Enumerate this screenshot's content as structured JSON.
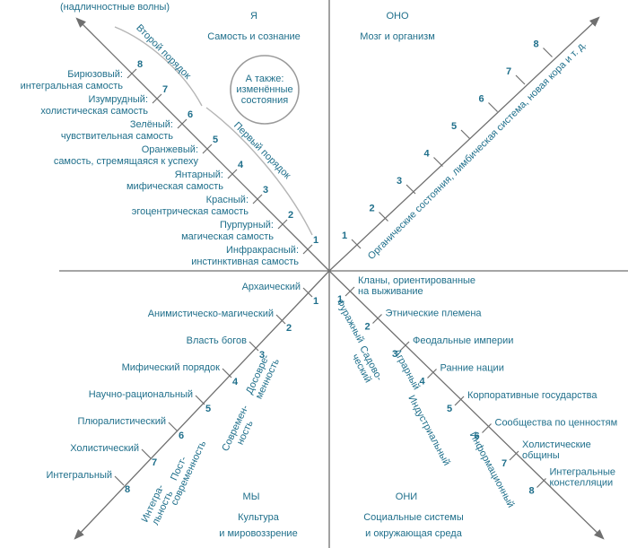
{
  "quadrants": {
    "upper_left": {
      "title": "Я",
      "subtitle": [
        "Самость и сознание"
      ],
      "note": "(надличностные волны)",
      "brackets": [
        "Второй порядок",
        "Первый порядок"
      ],
      "also": [
        "А также:",
        "изменённые",
        "состояния"
      ],
      "levels": [
        {
          "number": "1",
          "label": [
            "Инфракрасный:",
            "инстинктивная самость"
          ]
        },
        {
          "number": "2",
          "label": [
            "Пурпурный:",
            "магическая самость"
          ]
        },
        {
          "number": "3",
          "label": [
            "Красный:",
            "эгоцентрическая самость"
          ]
        },
        {
          "number": "4",
          "label": [
            "Янтарный:",
            "мифическая самость"
          ]
        },
        {
          "number": "5",
          "label": [
            "Оранжевый:",
            "самость, стремящаяся к успеху"
          ]
        },
        {
          "number": "6",
          "label": [
            "Зелёный:",
            "чувствительная самость"
          ]
        },
        {
          "number": "7",
          "label": [
            "Изумрудный:",
            "холистическая самость"
          ]
        },
        {
          "number": "8",
          "label": [
            "Бирюзовый:",
            "интегральная самость"
          ]
        }
      ]
    },
    "upper_right": {
      "title": "ОНО",
      "subtitle": [
        "Мозг и организм"
      ],
      "axis_label": "Органические состояния, лимбическая система, новая кора и т. д.",
      "levels": [
        "1",
        "2",
        "3",
        "4",
        "5",
        "6",
        "7",
        "8"
      ]
    },
    "lower_left": {
      "title": "МЫ",
      "subtitle": [
        "Культура",
        "и мировоззрение"
      ],
      "levels": [
        {
          "number": "1",
          "label": [
            "Архаический"
          ]
        },
        {
          "number": "2",
          "label": [
            "Анимистическо-магический"
          ]
        },
        {
          "number": "3",
          "label": [
            "Власть богов"
          ]
        },
        {
          "number": "4",
          "label": [
            "Мифический порядок"
          ]
        },
        {
          "number": "5",
          "label": [
            "Научно-рациональный"
          ]
        },
        {
          "number": "6",
          "label": [
            "Плюралистический"
          ]
        },
        {
          "number": "7",
          "label": [
            "Холистический"
          ]
        },
        {
          "number": "8",
          "label": [
            "Интегральный"
          ]
        }
      ],
      "eras": [
        [
          "Досовре-",
          "менность"
        ],
        [
          "Современ-",
          "ность"
        ],
        [
          "Пост-",
          "современность"
        ],
        [
          "Интегра-",
          "льность"
        ]
      ]
    },
    "lower_right": {
      "title": "ОНИ",
      "subtitle": [
        "Социальные системы",
        "и окружающая среда"
      ],
      "levels": [
        {
          "number": "1",
          "label": [
            "Кланы, ориентированные",
            "на выживание"
          ]
        },
        {
          "number": "2",
          "label": [
            "Этнические племена"
          ]
        },
        {
          "number": "3",
          "label": [
            "Феодальные империи"
          ]
        },
        {
          "number": "4",
          "label": [
            "Ранние нации"
          ]
        },
        {
          "number": "5",
          "label": [
            "Корпоративные государства"
          ]
        },
        {
          "number": "6",
          "label": [
            "Сообщества по ценностям"
          ]
        },
        {
          "number": "7",
          "label": [
            "Холистические",
            "общины"
          ]
        },
        {
          "number": "8",
          "label": [
            "Интегральные",
            "констелляции"
          ]
        }
      ],
      "stages": [
        [
          "Фуражный"
        ],
        [
          "Садово-",
          "ческий"
        ],
        [
          "Аграрный"
        ],
        [
          "Индустриальный"
        ],
        [
          "Информационный"
        ]
      ]
    }
  }
}
